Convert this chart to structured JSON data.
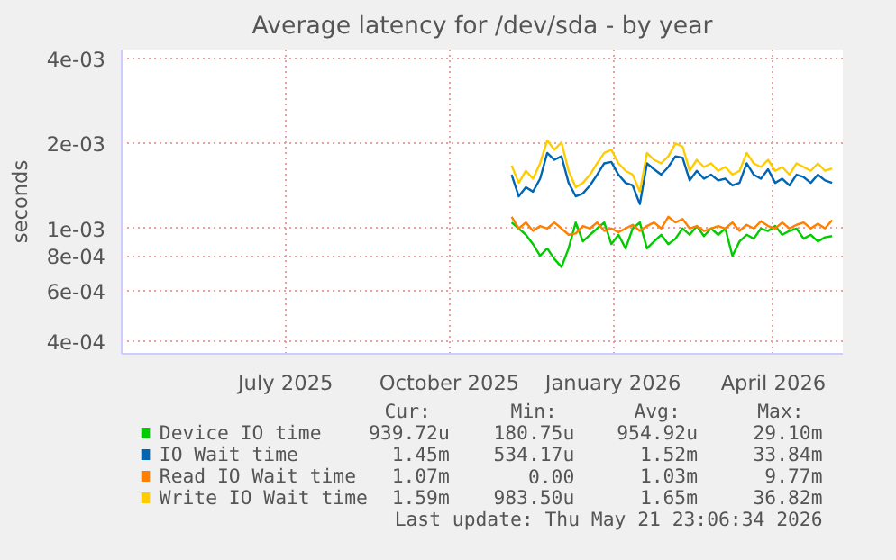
{
  "chart_data": {
    "type": "line",
    "title": "Average latency for /dev/sda - by year",
    "ylabel": "seconds",
    "log": true,
    "grid": true,
    "legend": "bottom",
    "xlim": [
      "2025-04-15",
      "2026-05-25"
    ],
    "xticks": [
      {
        "value": "2025-07-16",
        "label": "July 2025"
      },
      {
        "value": "2025-10-16",
        "label": "October 2025"
      },
      {
        "value": "2026-01-16",
        "label": "January 2026"
      },
      {
        "value": "2026-04-16",
        "label": "April 2026"
      }
    ],
    "ylim": [
      0.00036,
      0.0043
    ],
    "yticks": [
      {
        "value": 0.0004,
        "label": "4e-04"
      },
      {
        "value": 0.0006,
        "label": "6e-04"
      },
      {
        "value": 0.0008,
        "label": "8e-04"
      },
      {
        "value": 0.001,
        "label": "1e-03"
      },
      {
        "value": 0.002,
        "label": "2e-03"
      },
      {
        "value": 0.004,
        "label": "4e-03"
      }
    ],
    "x": [
      "2025-11-20",
      "2025-11-24",
      "2025-11-28",
      "2025-12-02",
      "2025-12-06",
      "2025-12-10",
      "2025-12-14",
      "2025-12-18",
      "2025-12-22",
      "2025-12-26",
      "2025-12-30",
      "2026-01-03",
      "2026-01-07",
      "2026-01-11",
      "2026-01-15",
      "2026-01-19",
      "2026-01-23",
      "2026-01-27",
      "2026-01-31",
      "2026-02-04",
      "2026-02-08",
      "2026-02-12",
      "2026-02-16",
      "2026-02-20",
      "2026-02-24",
      "2026-02-28",
      "2026-03-04",
      "2026-03-08",
      "2026-03-12",
      "2026-03-16",
      "2026-03-20",
      "2026-03-24",
      "2026-03-28",
      "2026-04-01",
      "2026-04-05",
      "2026-04-09",
      "2026-04-13",
      "2026-04-17",
      "2026-04-21",
      "2026-04-25",
      "2026-04-29",
      "2026-05-03",
      "2026-05-07",
      "2026-05-11",
      "2026-05-15",
      "2026-05-19"
    ],
    "series": [
      {
        "name": "Device IO time",
        "color": "#00cc00",
        "values": [
          0.00105,
          0.001,
          0.00095,
          0.00088,
          0.0008,
          0.00085,
          0.00078,
          0.00073,
          0.00085,
          0.00105,
          0.0009,
          0.00095,
          0.001,
          0.00105,
          0.00088,
          0.00095,
          0.00085,
          0.001,
          0.00105,
          0.00085,
          0.0009,
          0.00095,
          0.00088,
          0.00092,
          0.001,
          0.00095,
          0.00102,
          0.00094,
          0.001,
          0.00095,
          0.001,
          0.0008,
          0.0009,
          0.00095,
          0.00092,
          0.001,
          0.00098,
          0.00102,
          0.00095,
          0.00098,
          0.001,
          0.00092,
          0.00095,
          0.0009,
          0.00093,
          0.00094
        ]
      },
      {
        "name": "IO Wait time",
        "color": "#0066b3",
        "values": [
          0.00155,
          0.0013,
          0.0014,
          0.00135,
          0.0015,
          0.00185,
          0.00175,
          0.0018,
          0.00145,
          0.0013,
          0.00133,
          0.00142,
          0.00155,
          0.0017,
          0.00172,
          0.00155,
          0.00145,
          0.00142,
          0.00122,
          0.0017,
          0.00162,
          0.00155,
          0.00165,
          0.0018,
          0.00178,
          0.00148,
          0.0016,
          0.0015,
          0.00155,
          0.00148,
          0.0015,
          0.00142,
          0.00145,
          0.0017,
          0.00155,
          0.0015,
          0.00162,
          0.00145,
          0.0015,
          0.00142,
          0.00155,
          0.00152,
          0.00145,
          0.00155,
          0.00148,
          0.00145
        ]
      },
      {
        "name": "Read IO Wait time",
        "color": "#ff8000",
        "values": [
          0.0011,
          0.001,
          0.00105,
          0.00098,
          0.00102,
          0.001,
          0.00105,
          0.001,
          0.00095,
          0.00096,
          0.00102,
          0.001,
          0.00105,
          0.00098,
          0.001,
          0.00097,
          0.001,
          0.00103,
          0.00098,
          0.00102,
          0.00105,
          0.001,
          0.0011,
          0.00105,
          0.00108,
          0.001,
          0.00102,
          0.00098,
          0.001,
          0.00102,
          0.001,
          0.00105,
          0.00098,
          0.00103,
          0.001,
          0.00106,
          0.00102,
          0.001,
          0.00105,
          0.001,
          0.00103,
          0.00105,
          0.001,
          0.00104,
          0.001,
          0.00107
        ]
      },
      {
        "name": "Write IO Wait time",
        "color": "#ffcc00",
        "values": [
          0.00167,
          0.00145,
          0.0016,
          0.0015,
          0.0017,
          0.00205,
          0.0019,
          0.00202,
          0.0016,
          0.0014,
          0.00145,
          0.00155,
          0.0017,
          0.00185,
          0.0019,
          0.0017,
          0.0016,
          0.00155,
          0.00135,
          0.00185,
          0.00175,
          0.0017,
          0.0018,
          0.002,
          0.00195,
          0.0016,
          0.00175,
          0.00165,
          0.0017,
          0.0016,
          0.00165,
          0.00155,
          0.0016,
          0.00185,
          0.0017,
          0.00165,
          0.00175,
          0.0016,
          0.00165,
          0.00155,
          0.0017,
          0.00165,
          0.0016,
          0.0017,
          0.0016,
          0.00163
        ]
      }
    ],
    "annotations": [
      "Cur:",
      "Min:",
      "Avg:",
      "Max:",
      "939.72u",
      "180.75u",
      "954.92u",
      "29.10m",
      "1.45m",
      "534.17u",
      "1.52m",
      "33.84m",
      "1.07m",
      "0.00",
      "1.03m",
      "9.77m",
      "1.59m",
      "983.50u",
      "1.65m",
      "36.82m",
      "Last update: Thu May 21 23:06:34 2026"
    ]
  }
}
